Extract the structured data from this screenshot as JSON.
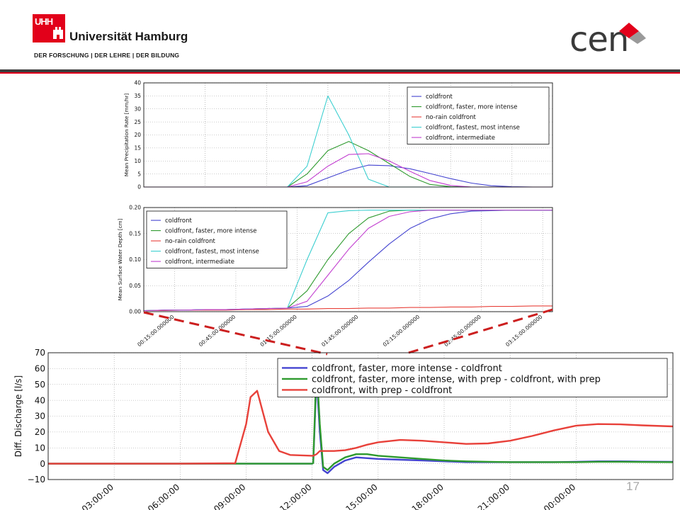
{
  "header": {
    "university_mark": "UHH",
    "university_name": "Universität Hamburg",
    "tagline": "DER FORSCHUNG | DER LEHRE | DER BILDUNG",
    "cen_label": "cen"
  },
  "page_number": "17",
  "colors": {
    "blue": "#4444d0",
    "green": "#2e9a2e",
    "red": "#e8413a",
    "cyan": "#3ccfd0",
    "magenta": "#c23fd0",
    "brand_red": "#e2001a",
    "zoom_dash": "#cc1f1f"
  },
  "chart_data": [
    {
      "type": "line",
      "ylabel": "Mean Precipitation Rate [mm/hr]",
      "ylim": [
        0,
        40
      ],
      "yticks": [
        "0",
        "5",
        "10",
        "15",
        "20",
        "25",
        "30",
        "35",
        "40"
      ],
      "grid": true,
      "legend_position": "top-right",
      "x_hours": [
        0.0,
        0.17,
        0.33,
        0.5,
        0.67,
        0.83,
        1.0,
        1.17,
        1.33,
        1.5,
        1.67,
        1.83,
        2.0,
        2.17,
        2.33,
        2.5,
        2.67,
        2.83,
        3.0,
        3.17,
        3.33
      ],
      "series": [
        {
          "name": "coldfront",
          "color": "blue",
          "values": [
            0,
            0,
            0,
            0,
            0,
            0,
            0,
            0,
            0.5,
            3.5,
            6.5,
            8.4,
            8.2,
            7.0,
            5.2,
            3.2,
            1.5,
            0.5,
            0.1,
            0,
            0
          ]
        },
        {
          "name": "coldfront, faster, more intense",
          "color": "green",
          "values": [
            0,
            0,
            0,
            0,
            0,
            0,
            0,
            0,
            5,
            14,
            17.5,
            14,
            9,
            4,
            1,
            0.1,
            0,
            0,
            0,
            0,
            0
          ]
        },
        {
          "name": "no-rain coldfront",
          "color": "red",
          "values": [
            0,
            0,
            0,
            0,
            0,
            0,
            0,
            0,
            0,
            0,
            0,
            0,
            0,
            0,
            0,
            0,
            0,
            0,
            0,
            0,
            0
          ]
        },
        {
          "name": "coldfront, fastest, most intense",
          "color": "cyan",
          "values": [
            0,
            0,
            0,
            0,
            0,
            0,
            0,
            0,
            8,
            35,
            20,
            3,
            0,
            0,
            0,
            0,
            0,
            0,
            0,
            0,
            0
          ]
        },
        {
          "name": "coldfront, intermediate",
          "color": "magenta",
          "values": [
            0,
            0,
            0,
            0,
            0,
            0,
            0,
            0,
            2,
            8,
            12.5,
            12.8,
            10,
            6,
            2.5,
            0.6,
            0,
            0,
            0,
            0,
            0
          ]
        }
      ]
    },
    {
      "type": "line",
      "ylabel": "Mean Surface Water Depth [cm]",
      "ylim": [
        0,
        0.2
      ],
      "yticks": [
        "0.00",
        "0.05",
        "0.10",
        "0.15",
        "0.20"
      ],
      "x_tick_labels": [
        "00:15:00.000000",
        "00:45:00.000000",
        "01:15:00.000000",
        "01:45:00.000000",
        "02:15:00.000000",
        "02:45:00.000000",
        "03:15:00.000000"
      ],
      "grid": true,
      "legend_position": "top-left",
      "x_hours": [
        0.0,
        0.17,
        0.33,
        0.5,
        0.67,
        0.83,
        1.0,
        1.17,
        1.33,
        1.5,
        1.67,
        1.83,
        2.0,
        2.17,
        2.33,
        2.5,
        2.67,
        2.83,
        3.0,
        3.17,
        3.33
      ],
      "series": [
        {
          "name": "coldfront",
          "color": "blue",
          "values": [
            0.002,
            0.003,
            0.003,
            0.004,
            0.004,
            0.005,
            0.006,
            0.007,
            0.01,
            0.03,
            0.06,
            0.095,
            0.13,
            0.16,
            0.178,
            0.188,
            0.193,
            0.194,
            0.195,
            0.195,
            0.195
          ]
        },
        {
          "name": "coldfront, faster, more intense",
          "color": "green",
          "values": [
            0.002,
            0.003,
            0.003,
            0.004,
            0.004,
            0.005,
            0.006,
            0.007,
            0.04,
            0.1,
            0.15,
            0.18,
            0.193,
            0.195,
            0.195,
            0.195,
            0.195,
            0.195,
            0.195,
            0.195,
            0.195
          ]
        },
        {
          "name": "no-rain coldfront",
          "color": "red",
          "values": [
            0.002,
            0.002,
            0.003,
            0.003,
            0.003,
            0.004,
            0.004,
            0.005,
            0.005,
            0.006,
            0.006,
            0.007,
            0.007,
            0.008,
            0.008,
            0.009,
            0.009,
            0.01,
            0.01,
            0.011,
            0.011
          ]
        },
        {
          "name": "coldfront, fastest, most intense",
          "color": "cyan",
          "values": [
            0.002,
            0.003,
            0.003,
            0.004,
            0.004,
            0.005,
            0.006,
            0.007,
            0.1,
            0.19,
            0.194,
            0.195,
            0.195,
            0.195,
            0.195,
            0.195,
            0.195,
            0.195,
            0.195,
            0.195,
            0.195
          ]
        },
        {
          "name": "coldfront, intermediate",
          "color": "magenta",
          "values": [
            0.002,
            0.003,
            0.003,
            0.004,
            0.004,
            0.005,
            0.006,
            0.007,
            0.02,
            0.07,
            0.12,
            0.16,
            0.183,
            0.192,
            0.195,
            0.195,
            0.195,
            0.195,
            0.195,
            0.195,
            0.195
          ]
        }
      ]
    },
    {
      "type": "line",
      "ylabel": "Diff. Discharge [l/s]",
      "ylim": [
        -10,
        70
      ],
      "yticks": [
        "−10",
        "0",
        "10",
        "20",
        "30",
        "40",
        "50",
        "60",
        "70"
      ],
      "x_tick_labels": [
        "03:00:00",
        "06:00:00",
        "09:00:00",
        "12:00:00",
        "15:00:00",
        "18:00:00",
        "21:00:00",
        "00:00:00"
      ],
      "grid": true,
      "legend_position": "top-right",
      "x_hours": [
        0,
        3,
        6,
        8.5,
        9,
        9.2,
        9.5,
        10,
        10.5,
        11,
        12,
        12.05,
        12.2,
        12.35,
        12.5,
        12.7,
        13,
        13.5,
        14,
        14.5,
        15,
        16,
        17,
        18,
        19,
        20,
        21,
        22,
        23,
        24,
        25,
        26,
        27,
        28.4
      ],
      "series": [
        {
          "name": "coldfront, faster, more intense - coldfront",
          "color": "blue",
          "values": [
            0,
            0,
            0,
            0,
            0,
            0,
            0,
            0,
            0,
            0,
            0,
            0.5,
            55,
            20,
            -4,
            -6,
            -2,
            2,
            4,
            3.5,
            3,
            2.5,
            2,
            1.5,
            1,
            1,
            1,
            1,
            1,
            1.2,
            1.5,
            1.5,
            1.3,
            1.2
          ]
        },
        {
          "name": "coldfront, faster, more intense, with prep - coldfront, with prep",
          "color": "green",
          "values": [
            0,
            0,
            0,
            0,
            0,
            0,
            0,
            0,
            0,
            0,
            0,
            0.5,
            62,
            25,
            -2,
            -4,
            0,
            4,
            6,
            6,
            5,
            4,
            3,
            2,
            1.5,
            1.2,
            1,
            1,
            1,
            1,
            1.2,
            1.2,
            1.1,
            1
          ]
        },
        {
          "name": "coldfront, with prep - coldfront",
          "color": "red",
          "values": [
            0,
            0,
            0,
            0.3,
            25,
            42,
            46,
            20,
            8,
            5.5,
            5,
            5,
            6,
            8,
            8,
            8,
            8,
            8.5,
            10,
            12,
            13.5,
            15,
            14.5,
            13.5,
            12.5,
            12.8,
            14.5,
            17.5,
            21,
            24,
            25,
            24.8,
            24.2,
            23.5
          ]
        }
      ]
    }
  ]
}
